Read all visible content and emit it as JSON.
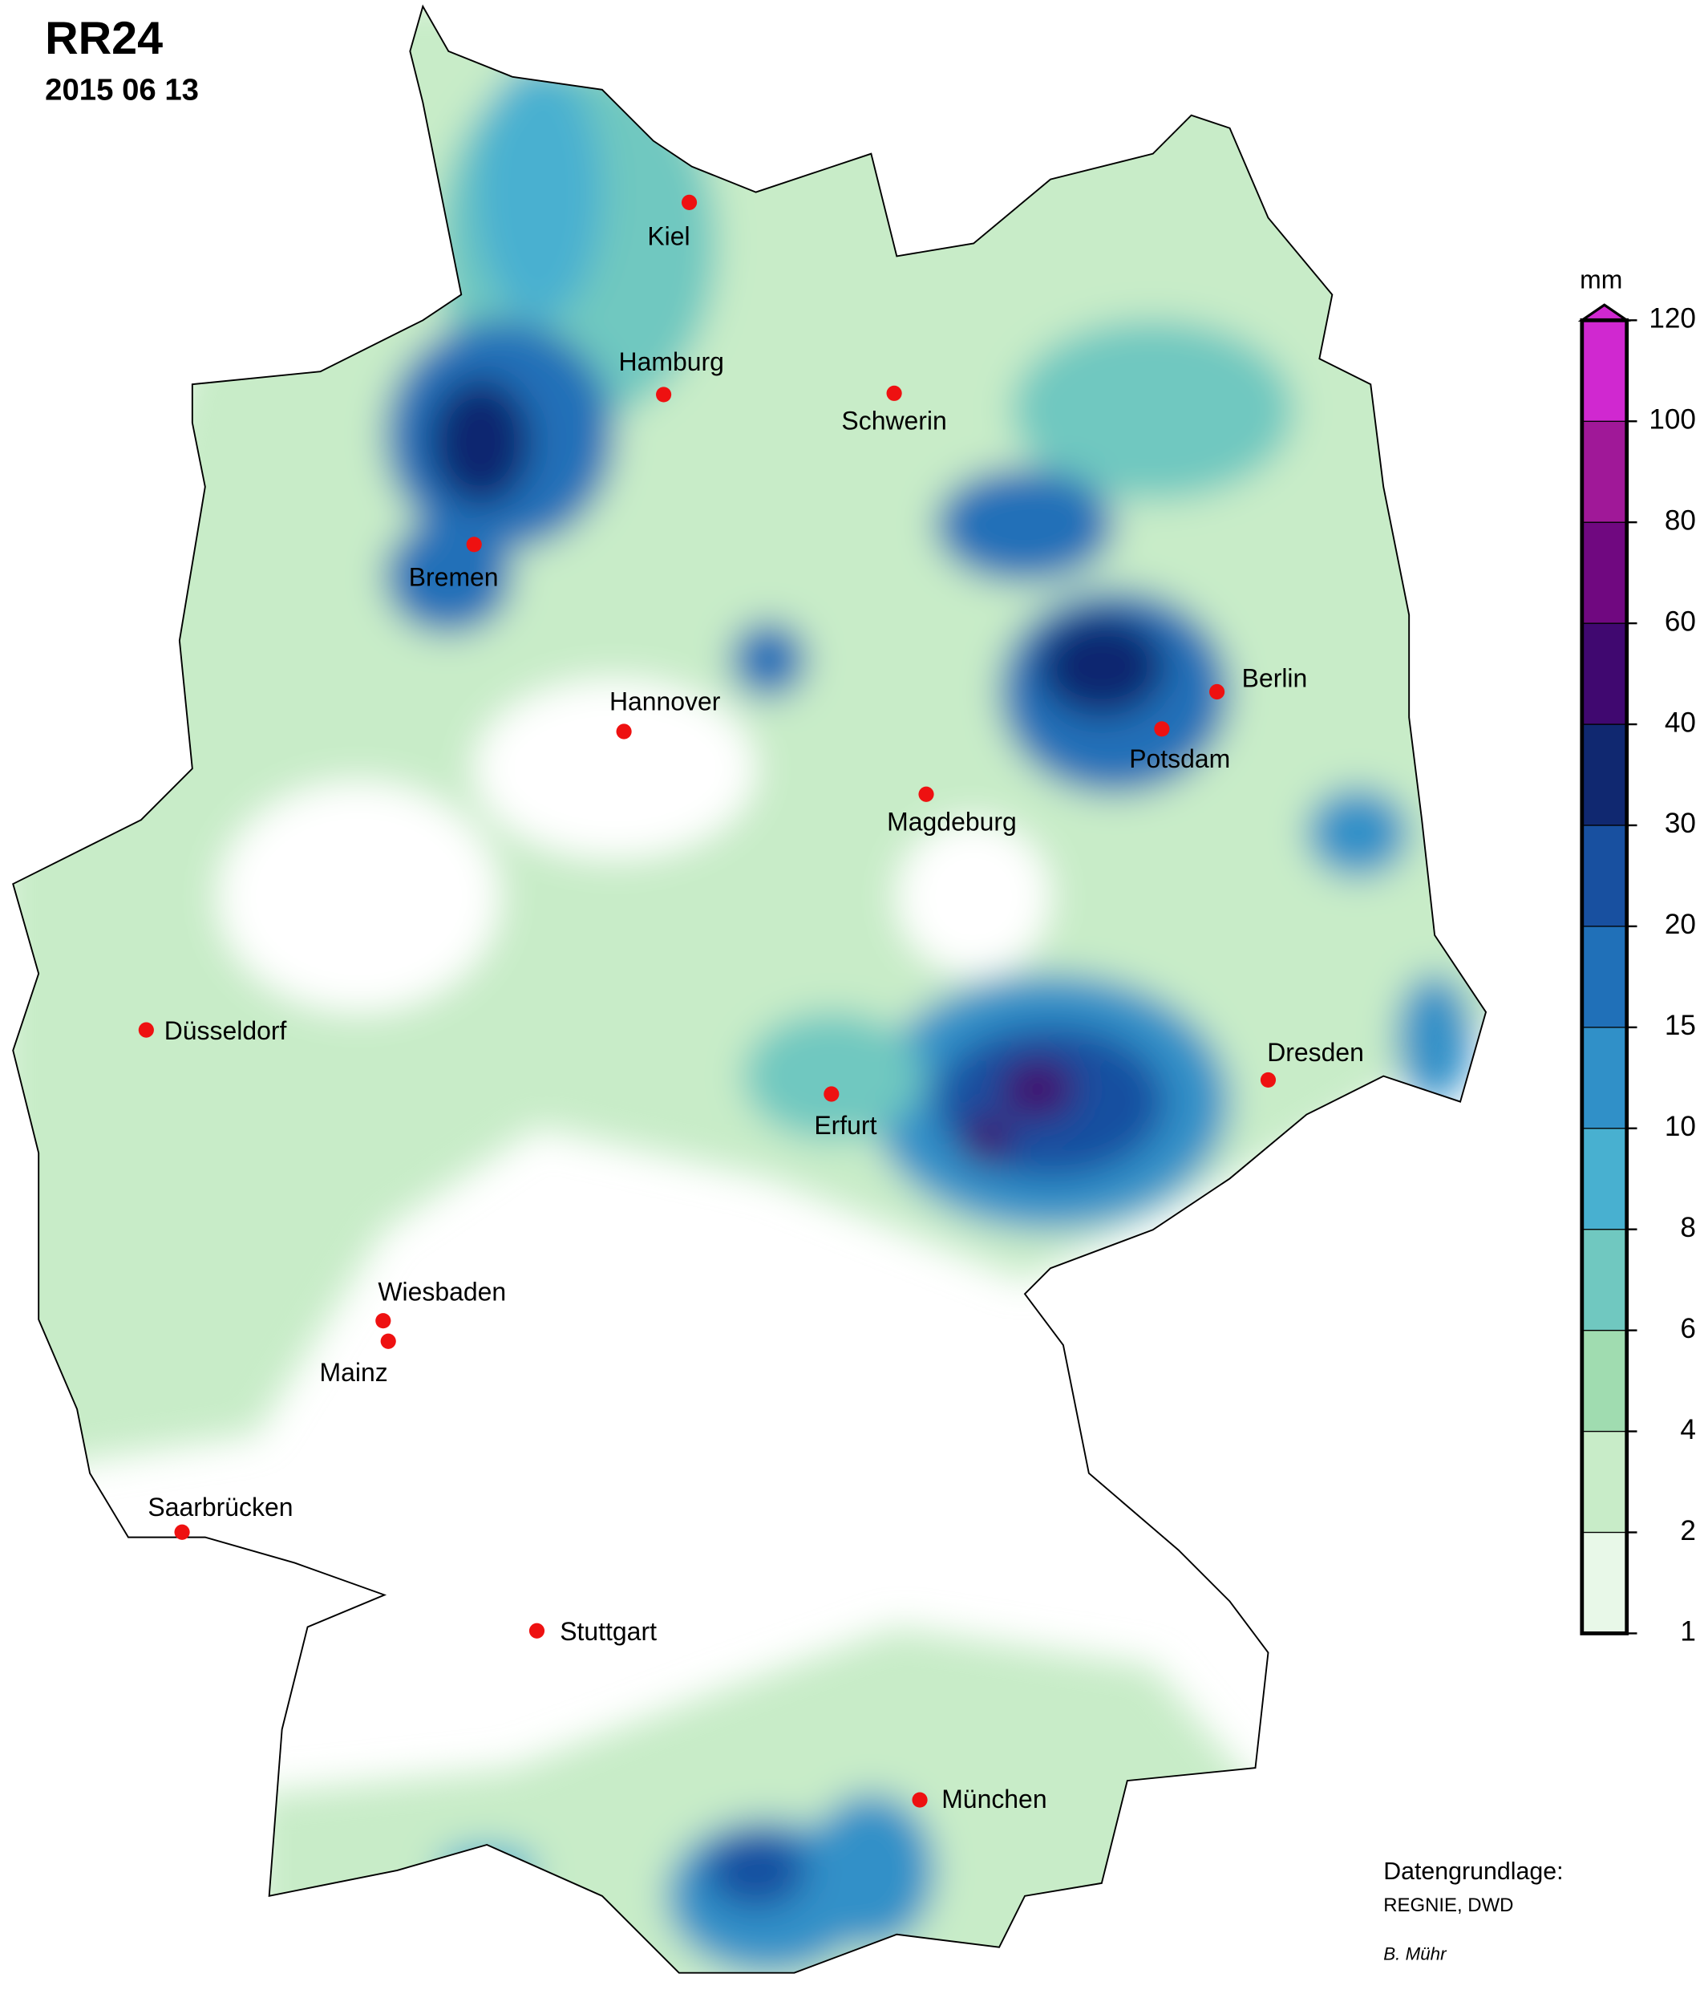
{
  "title": "RR24",
  "date": "2015 06 13",
  "cities": [
    {
      "name": "Kiel"
    },
    {
      "name": "Hamburg"
    },
    {
      "name": "Schwerin"
    },
    {
      "name": "Bremen"
    },
    {
      "name": "Hannover"
    },
    {
      "name": "Berlin"
    },
    {
      "name": "Potsdam"
    },
    {
      "name": "Magdeburg"
    },
    {
      "name": "Düsseldorf"
    },
    {
      "name": "Dresden"
    },
    {
      "name": "Erfurt"
    },
    {
      "name": "Wiesbaden"
    },
    {
      "name": "Mainz"
    },
    {
      "name": "Saarbrücken"
    },
    {
      "name": "Stuttgart"
    },
    {
      "name": "München"
    }
  ],
  "legend": {
    "unit": "mm",
    "levels": [
      1,
      2,
      4,
      6,
      8,
      10,
      15,
      20,
      30,
      40,
      60,
      80,
      100,
      120
    ],
    "colors": [
      "#e8f8e8",
      "#c8ecc8",
      "#a0dcb0",
      "#70c8c0",
      "#48b0d0",
      "#3090c8",
      "#2070b8",
      "#1850a0",
      "#102870",
      "#400870",
      "#700880",
      "#a01898",
      "#d028d0"
    ]
  },
  "credits": {
    "line1": "Datengrundlage:",
    "line2": "REGNIE, DWD",
    "author": "B. Mühr"
  }
}
